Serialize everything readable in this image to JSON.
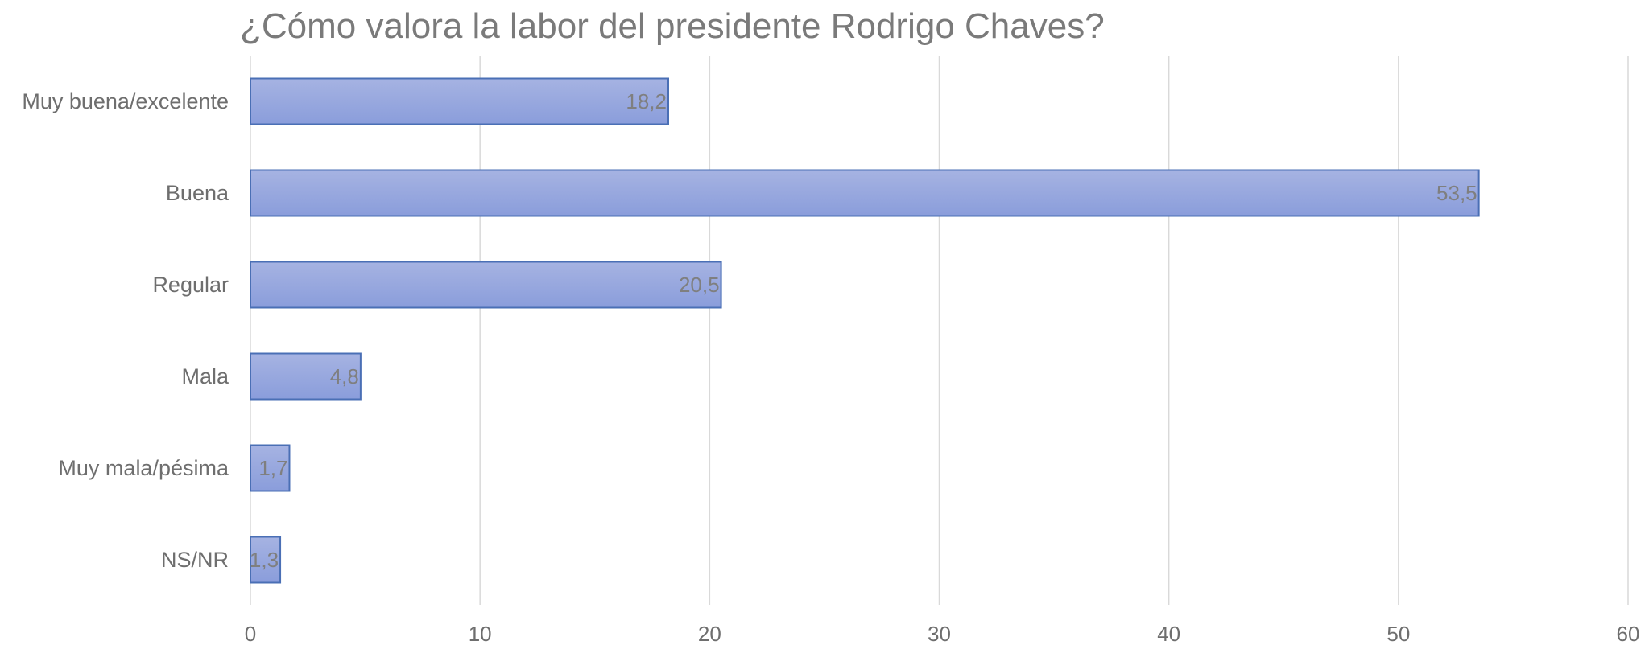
{
  "chart_data": {
    "type": "bar",
    "orientation": "horizontal",
    "title": "¿Cómo valora la labor del presidente Rodrigo Chaves?",
    "categories": [
      "Muy buena/excelente",
      "Buena",
      "Regular",
      "Mala",
      "Muy mala/pésima",
      "NS/NR"
    ],
    "values": [
      18.2,
      53.5,
      20.5,
      4.8,
      1.7,
      1.3
    ],
    "data_labels": [
      "18,2",
      "53,5",
      "20,5",
      "4,8",
      "1,7",
      "1,3"
    ],
    "xlim": [
      0,
      60
    ],
    "x_ticks": [
      0,
      10,
      20,
      30,
      40,
      50,
      60
    ],
    "x_tick_labels": [
      "0",
      "10",
      "20",
      "30",
      "40",
      "50",
      "60"
    ],
    "xlabel": "",
    "ylabel": "",
    "grid": "vertical",
    "legend": "none",
    "colors": {
      "bar_fill_top": "#a6b3e2",
      "bar_fill_bottom": "#8a9ddb",
      "bar_stroke": "#4a6fb5",
      "grid": "#d9d9d9"
    }
  }
}
